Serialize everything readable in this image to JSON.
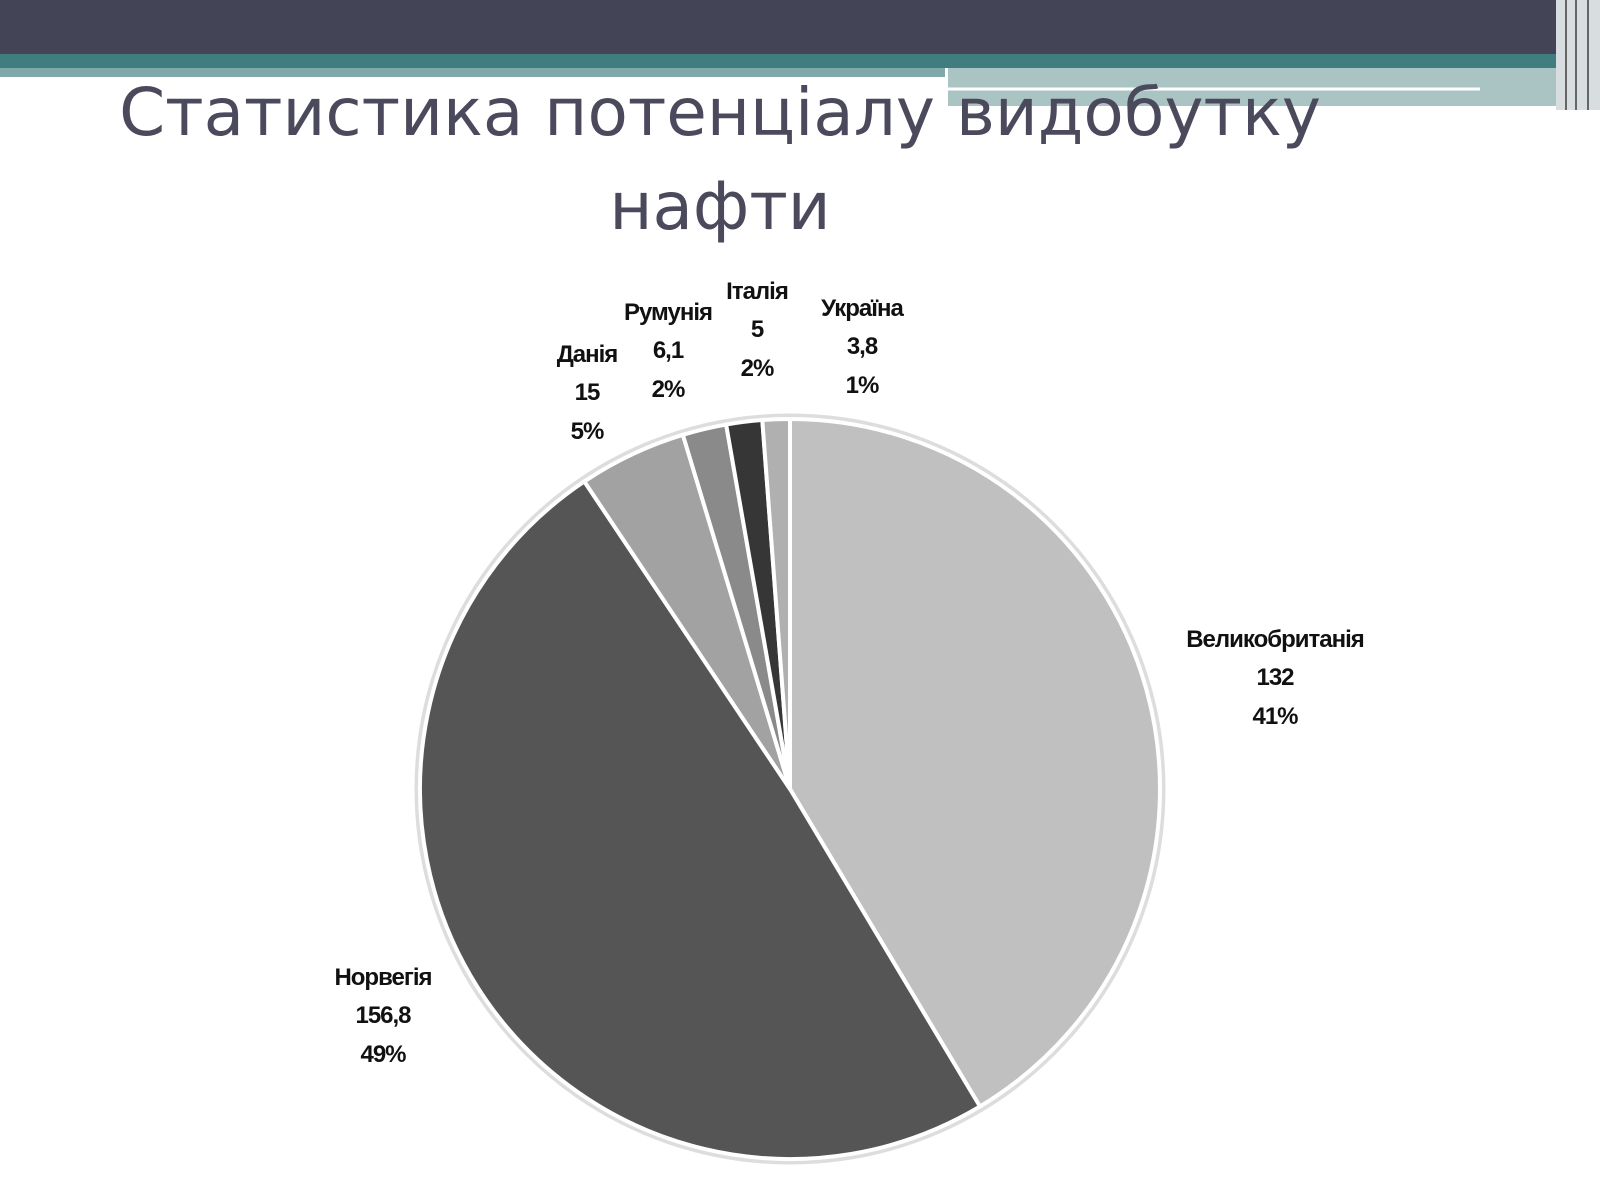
{
  "chart_data": {
    "type": "pie",
    "title": "Статистика потенціалу видобутку нафти",
    "categories": [
      "Великобританія",
      "Норвегія",
      "Данія",
      "Румунія",
      "Італія",
      "Україна"
    ],
    "values": [
      132,
      156.8,
      15,
      6.1,
      5,
      3.8
    ],
    "value_labels": [
      "132",
      "156,8",
      "15",
      "6,1",
      "5",
      "3,8"
    ],
    "percent_labels": [
      "41%",
      "49%",
      "5%",
      "2%",
      "2%",
      "1%"
    ],
    "colors": [
      "#c0c0c0",
      "#555555",
      "#a2a2a2",
      "#8a8a8a",
      "#363636",
      "#b0b0b0"
    ]
  }
}
